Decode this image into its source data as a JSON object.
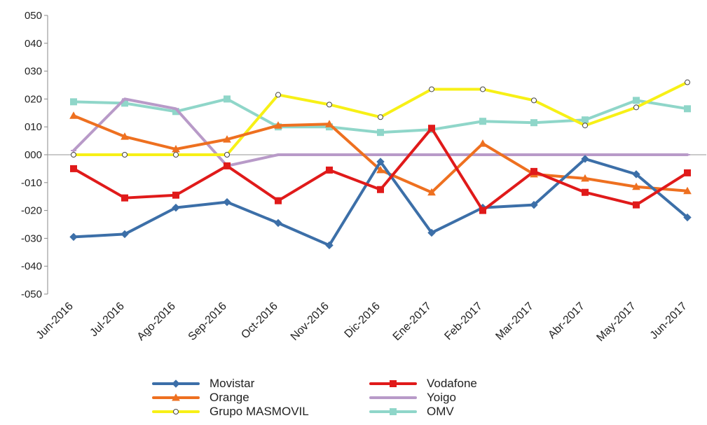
{
  "chart_data": {
    "type": "line",
    "title": "",
    "xlabel": "",
    "ylabel": "",
    "ylim": [
      -50,
      50
    ],
    "yticks": [
      "050",
      "040",
      "030",
      "020",
      "010",
      "000",
      "-010",
      "-020",
      "-030",
      "-040",
      "-050"
    ],
    "ytick_values": [
      50,
      40,
      30,
      20,
      10,
      0,
      -10,
      -20,
      -30,
      -40,
      -50
    ],
    "categories": [
      "Jun-2016",
      "Jul-2016",
      "Ago-2016",
      "Sep-2016",
      "Oct-2016",
      "Nov-2016",
      "Dic-2016",
      "Ene-2017",
      "Feb-2017",
      "Mar-2017",
      "Abr-2017",
      "May-2017",
      "Jun-2017"
    ],
    "grid": false,
    "legend_position": "bottom",
    "series": [
      {
        "name": "Movistar",
        "color": "#3c6fa8",
        "marker": "diamond",
        "values": [
          -29.5,
          -28.5,
          -19,
          -17,
          -24.5,
          -32.5,
          -2.5,
          -28,
          -19,
          -18,
          -1.5,
          -7,
          -22.5
        ]
      },
      {
        "name": "Vodafone",
        "color": "#e01a1a",
        "marker": "square",
        "values": [
          -5,
          -15.5,
          -14.5,
          -4,
          -16.5,
          -5.5,
          -12.5,
          9.5,
          -20,
          -6,
          -13.5,
          -18,
          -6.5
        ]
      },
      {
        "name": "Orange",
        "color": "#ee7020",
        "marker": "triangle",
        "values": [
          14,
          6.5,
          2,
          5.5,
          10.5,
          11,
          -5.5,
          -13.5,
          4,
          -7,
          -8.5,
          -11.5,
          -13
        ]
      },
      {
        "name": "Yoigo",
        "color": "#b89ac8",
        "marker": "dash",
        "values": [
          1.5,
          20,
          16.5,
          -4,
          0,
          0,
          0,
          0,
          0,
          0,
          0,
          0,
          0
        ]
      },
      {
        "name": "Grupo MASMOVIL",
        "color": "#f7f016",
        "marker": "circle",
        "values": [
          0,
          0,
          0,
          0,
          21.5,
          18,
          13.5,
          23.5,
          23.5,
          19.5,
          10.5,
          17,
          26
        ]
      },
      {
        "name": "OMV",
        "color": "#8fd6c9",
        "marker": "square",
        "values": [
          19,
          18.5,
          15.5,
          20,
          10,
          10,
          8,
          9,
          12,
          11.5,
          12.5,
          19.5,
          16.5
        ]
      }
    ]
  }
}
